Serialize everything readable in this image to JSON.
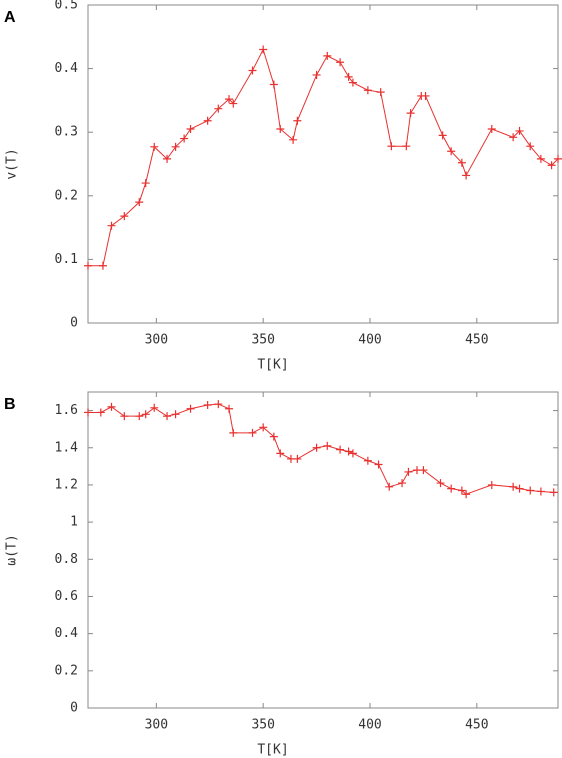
{
  "chart_data": [
    {
      "type": "line",
      "panel_label": "A",
      "x_label": "T[K]",
      "y_label": "v(T)",
      "xlim": [
        268,
        488
      ],
      "xticks": [
        300,
        350,
        400,
        450
      ],
      "ylim": [
        0,
        0.5
      ],
      "yticks": [
        0,
        0.1,
        0.2,
        0.3,
        0.4,
        0.5
      ],
      "series": [
        {
          "color": "#e8312f",
          "x": [
            268,
            275,
            279,
            285,
            292,
            295,
            299,
            305,
            309,
            313,
            316,
            324,
            329,
            334,
            336,
            345,
            350,
            355,
            358,
            364,
            366,
            375,
            380,
            386,
            390,
            392,
            399,
            405,
            410,
            417,
            419,
            424,
            426,
            434,
            438,
            443,
            445,
            457,
            467,
            470,
            475,
            480,
            485,
            488
          ],
          "values": [
            0.09,
            0.09,
            0.153,
            0.168,
            0.19,
            0.22,
            0.277,
            0.258,
            0.277,
            0.29,
            0.305,
            0.318,
            0.337,
            0.352,
            0.345,
            0.397,
            0.43,
            0.375,
            0.305,
            0.288,
            0.318,
            0.39,
            0.42,
            0.41,
            0.387,
            0.378,
            0.366,
            0.363,
            0.278,
            0.278,
            0.33,
            0.357,
            0.357,
            0.295,
            0.27,
            0.252,
            0.232,
            0.305,
            0.292,
            0.302,
            0.278,
            0.258,
            0.248,
            0.258
          ]
        }
      ]
    },
    {
      "type": "line",
      "panel_label": "B",
      "x_label": "T[K]",
      "y_label": "ω(T)",
      "xlim": [
        268,
        488
      ],
      "xticks": [
        300,
        350,
        400,
        450
      ],
      "ylim": [
        0,
        1.7
      ],
      "yticks": [
        0,
        0.2,
        0.4,
        0.6,
        0.8,
        1,
        1.2,
        1.4,
        1.6
      ],
      "series": [
        {
          "color": "#e8312f",
          "x": [
            268,
            274,
            279,
            285,
            292,
            295,
            299,
            305,
            309,
            316,
            324,
            329,
            334,
            336,
            345,
            350,
            355,
            358,
            363,
            366,
            375,
            380,
            386,
            390,
            392,
            399,
            404,
            409,
            415,
            418,
            422,
            425,
            433,
            438,
            443,
            445,
            457,
            467,
            470,
            475,
            480,
            486
          ],
          "values": [
            1.59,
            1.59,
            1.62,
            1.57,
            1.57,
            1.58,
            1.615,
            1.57,
            1.58,
            1.61,
            1.63,
            1.635,
            1.61,
            1.48,
            1.48,
            1.51,
            1.46,
            1.37,
            1.34,
            1.34,
            1.4,
            1.41,
            1.39,
            1.38,
            1.37,
            1.33,
            1.31,
            1.19,
            1.21,
            1.27,
            1.28,
            1.28,
            1.21,
            1.18,
            1.17,
            1.15,
            1.2,
            1.19,
            1.18,
            1.17,
            1.165,
            1.16
          ]
        }
      ]
    }
  ]
}
